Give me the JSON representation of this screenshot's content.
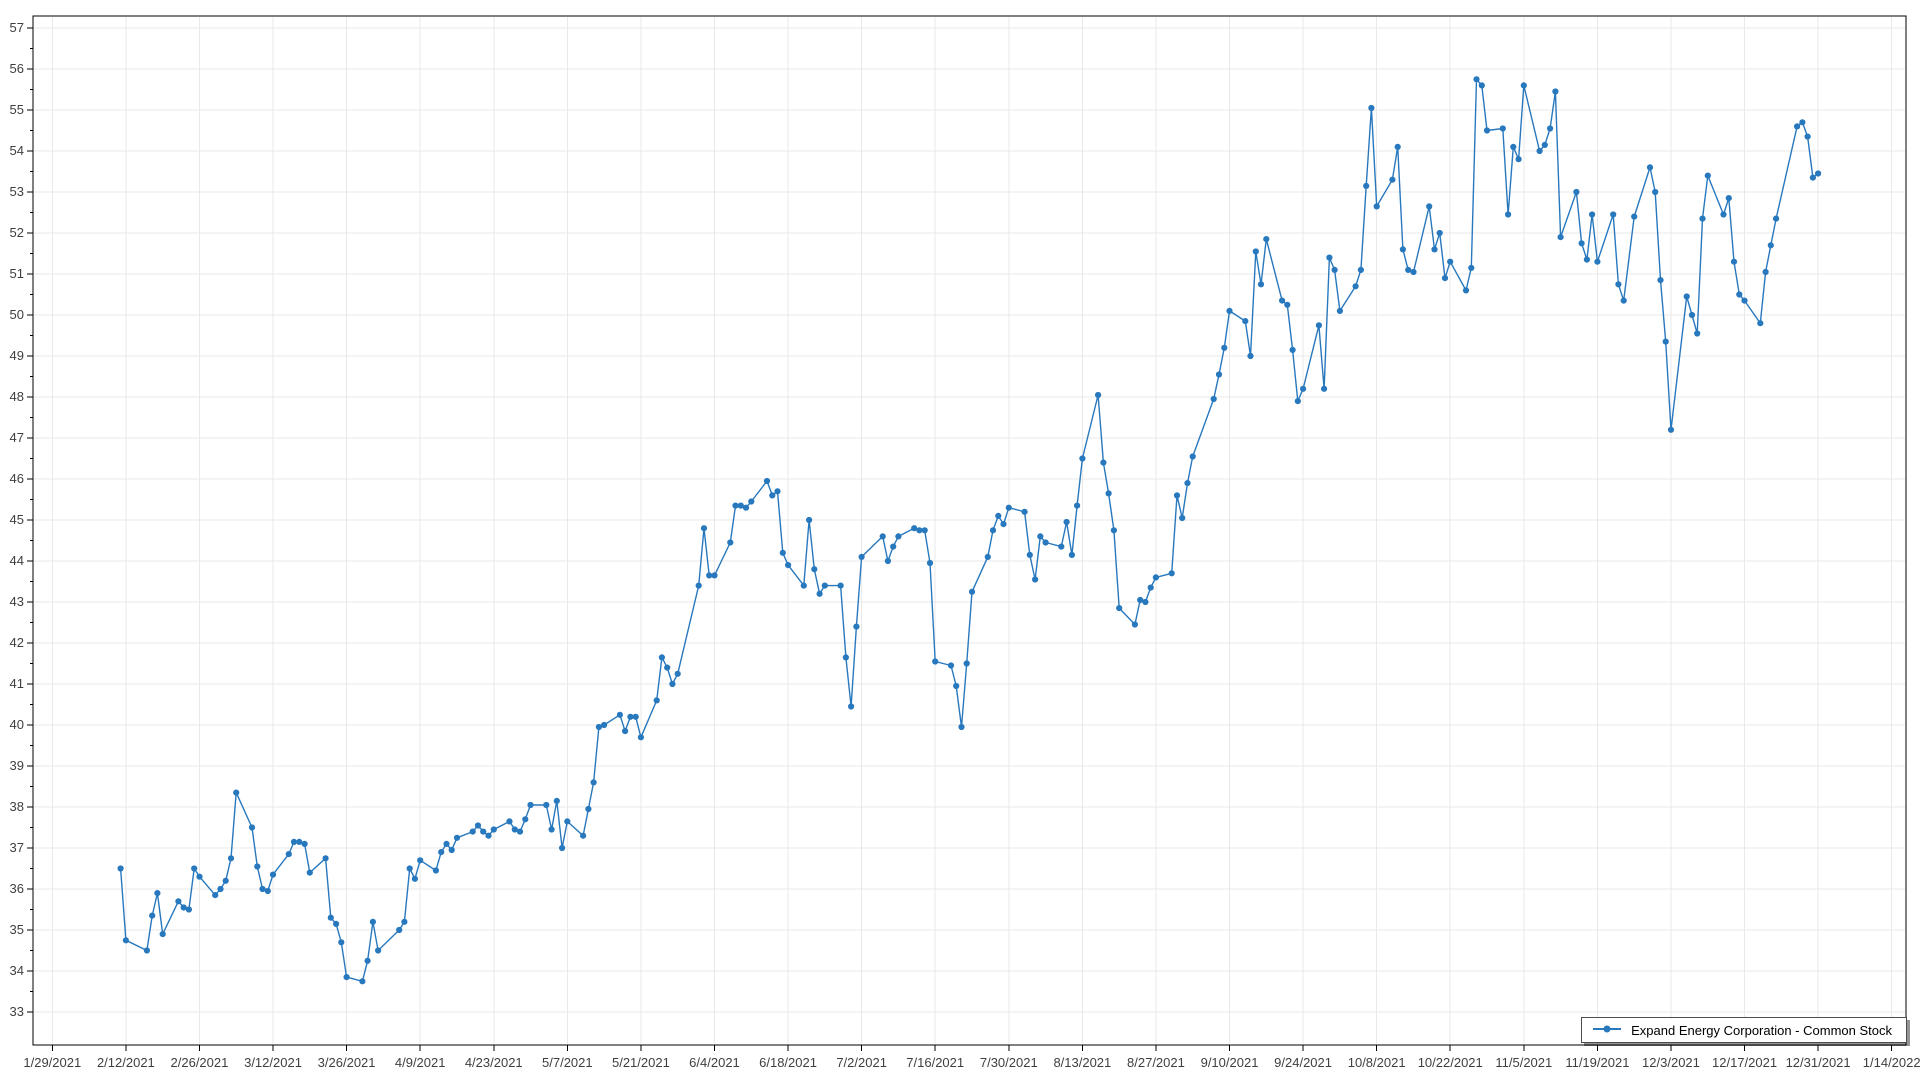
{
  "chart_data": {
    "type": "line",
    "title": "",
    "xlabel": "",
    "ylabel": "",
    "grid": true,
    "legend": {
      "position": "bottom-right",
      "label": "Expand Energy Corporation - Common Stock"
    },
    "colors": {
      "series": "#2878BE",
      "grid": "#e9e9e9",
      "axis_border": "#000000",
      "tick": "#000000",
      "label_text": "#3f3f3f",
      "background": "#ffffff"
    },
    "y_axis": {
      "min": 33,
      "max": 57,
      "tick_step": 1,
      "minor_tick_step": 0.5,
      "tick_labels": [
        "33",
        "34",
        "35",
        "36",
        "37",
        "38",
        "39",
        "40",
        "41",
        "42",
        "43",
        "44",
        "45",
        "46",
        "47",
        "48",
        "49",
        "50",
        "51",
        "52",
        "53",
        "54",
        "55",
        "56",
        "57"
      ]
    },
    "x_axis": {
      "start_date": "2021-01-29",
      "end_date": "2022-01-14",
      "tick_interval_days": 14,
      "tick_labels": [
        "1/29/2021",
        "2/12/2021",
        "2/26/2021",
        "3/12/2021",
        "3/26/2021",
        "4/9/2021",
        "4/23/2021",
        "5/7/2021",
        "5/21/2021",
        "6/4/2021",
        "6/18/2021",
        "7/2/2021",
        "7/16/2021",
        "7/30/2021",
        "8/13/2021",
        "8/27/2021",
        "9/10/2021",
        "9/24/2021",
        "10/8/2021",
        "10/22/2021",
        "11/5/2021",
        "11/19/2021",
        "12/3/2021",
        "12/17/2021",
        "12/31/2021",
        "1/14/2022"
      ]
    },
    "series": [
      {
        "name": "Expand Energy Corporation - Common Stock",
        "marker": "circle",
        "dates": [
          "2021-02-11",
          "2021-02-12",
          "2021-02-16",
          "2021-02-17",
          "2021-02-18",
          "2021-02-19",
          "2021-02-22",
          "2021-02-23",
          "2021-02-24",
          "2021-02-25",
          "2021-02-26",
          "2021-03-01",
          "2021-03-02",
          "2021-03-03",
          "2021-03-04",
          "2021-03-05",
          "2021-03-08",
          "2021-03-09",
          "2021-03-10",
          "2021-03-11",
          "2021-03-12",
          "2021-03-15",
          "2021-03-16",
          "2021-03-17",
          "2021-03-18",
          "2021-03-19",
          "2021-03-22",
          "2021-03-23",
          "2021-03-24",
          "2021-03-25",
          "2021-03-26",
          "2021-03-29",
          "2021-03-30",
          "2021-03-31",
          "2021-04-01",
          "2021-04-05",
          "2021-04-06",
          "2021-04-07",
          "2021-04-08",
          "2021-04-09",
          "2021-04-12",
          "2021-04-13",
          "2021-04-14",
          "2021-04-15",
          "2021-04-16",
          "2021-04-19",
          "2021-04-20",
          "2021-04-21",
          "2021-04-22",
          "2021-04-23",
          "2021-04-26",
          "2021-04-27",
          "2021-04-28",
          "2021-04-29",
          "2021-04-30",
          "2021-05-03",
          "2021-05-04",
          "2021-05-05",
          "2021-05-06",
          "2021-05-07",
          "2021-05-10",
          "2021-05-11",
          "2021-05-12",
          "2021-05-13",
          "2021-05-14",
          "2021-05-17",
          "2021-05-18",
          "2021-05-19",
          "2021-05-20",
          "2021-05-21",
          "2021-05-24",
          "2021-05-25",
          "2021-05-26",
          "2021-05-27",
          "2021-05-28",
          "2021-06-01",
          "2021-06-02",
          "2021-06-03",
          "2021-06-04",
          "2021-06-07",
          "2021-06-08",
          "2021-06-09",
          "2021-06-10",
          "2021-06-11",
          "2021-06-14",
          "2021-06-15",
          "2021-06-16",
          "2021-06-17",
          "2021-06-18",
          "2021-06-21",
          "2021-06-22",
          "2021-06-23",
          "2021-06-24",
          "2021-06-25",
          "2021-06-28",
          "2021-06-29",
          "2021-06-30",
          "2021-07-01",
          "2021-07-02",
          "2021-07-06",
          "2021-07-07",
          "2021-07-08",
          "2021-07-09",
          "2021-07-12",
          "2021-07-13",
          "2021-07-14",
          "2021-07-15",
          "2021-07-16",
          "2021-07-19",
          "2021-07-20",
          "2021-07-21",
          "2021-07-22",
          "2021-07-23",
          "2021-07-26",
          "2021-07-27",
          "2021-07-28",
          "2021-07-29",
          "2021-07-30",
          "2021-08-02",
          "2021-08-03",
          "2021-08-04",
          "2021-08-05",
          "2021-08-06",
          "2021-08-09",
          "2021-08-10",
          "2021-08-11",
          "2021-08-12",
          "2021-08-13",
          "2021-08-16",
          "2021-08-17",
          "2021-08-18",
          "2021-08-19",
          "2021-08-20",
          "2021-08-23",
          "2021-08-24",
          "2021-08-25",
          "2021-08-26",
          "2021-08-27",
          "2021-08-30",
          "2021-08-31",
          "2021-09-01",
          "2021-09-02",
          "2021-09-03",
          "2021-09-07",
          "2021-09-08",
          "2021-09-09",
          "2021-09-10",
          "2021-09-13",
          "2021-09-14",
          "2021-09-15",
          "2021-09-16",
          "2021-09-17",
          "2021-09-20",
          "2021-09-21",
          "2021-09-22",
          "2021-09-23",
          "2021-09-24",
          "2021-09-27",
          "2021-09-28",
          "2021-09-29",
          "2021-09-30",
          "2021-10-01",
          "2021-10-04",
          "2021-10-05",
          "2021-10-06",
          "2021-10-07",
          "2021-10-08",
          "2021-10-11",
          "2021-10-12",
          "2021-10-13",
          "2021-10-14",
          "2021-10-15",
          "2021-10-18",
          "2021-10-19",
          "2021-10-20",
          "2021-10-21",
          "2021-10-22",
          "2021-10-25",
          "2021-10-26",
          "2021-10-27",
          "2021-10-28",
          "2021-10-29",
          "2021-11-01",
          "2021-11-02",
          "2021-11-03",
          "2021-11-04",
          "2021-11-05",
          "2021-11-08",
          "2021-11-09",
          "2021-11-10",
          "2021-11-11",
          "2021-11-12",
          "2021-11-15",
          "2021-11-16",
          "2021-11-17",
          "2021-11-18",
          "2021-11-19",
          "2021-11-22",
          "2021-11-23",
          "2021-11-24",
          "2021-11-26",
          "2021-11-29",
          "2021-11-30",
          "2021-12-01",
          "2021-12-02",
          "2021-12-03",
          "2021-12-06",
          "2021-12-07",
          "2021-12-08",
          "2021-12-09",
          "2021-12-10",
          "2021-12-13",
          "2021-12-14",
          "2021-12-15",
          "2021-12-16",
          "2021-12-17",
          "2021-12-20",
          "2021-12-21",
          "2021-12-22",
          "2021-12-23",
          "2021-12-27",
          "2021-12-28",
          "2021-12-29",
          "2021-12-30",
          "2021-12-31"
        ],
        "values": [
          36.5,
          34.75,
          34.5,
          35.35,
          35.9,
          34.9,
          35.7,
          35.55,
          35.5,
          36.5,
          36.3,
          35.85,
          36.0,
          36.2,
          36.75,
          38.35,
          37.5,
          36.55,
          36.0,
          35.95,
          36.35,
          36.85,
          37.15,
          37.15,
          37.1,
          36.4,
          36.75,
          35.3,
          35.15,
          34.7,
          33.85,
          33.75,
          34.25,
          35.2,
          34.5,
          35.0,
          35.2,
          36.5,
          36.25,
          36.7,
          36.45,
          36.9,
          37.1,
          36.95,
          37.25,
          37.4,
          37.55,
          37.4,
          37.3,
          37.45,
          37.65,
          37.45,
          37.4,
          37.7,
          38.05,
          38.05,
          37.45,
          38.15,
          37.0,
          37.65,
          37.3,
          37.95,
          38.6,
          39.95,
          40.0,
          40.25,
          39.85,
          40.2,
          40.2,
          39.7,
          40.6,
          41.65,
          41.4,
          41.0,
          41.25,
          43.4,
          44.8,
          43.65,
          43.65,
          44.45,
          45.35,
          45.35,
          45.3,
          45.45,
          45.95,
          45.6,
          45.7,
          44.2,
          43.9,
          43.4,
          45.0,
          43.8,
          43.2,
          43.4,
          43.4,
          41.65,
          40.45,
          42.4,
          44.1,
          44.6,
          44.0,
          44.35,
          44.6,
          44.8,
          44.75,
          44.75,
          43.95,
          41.55,
          41.45,
          40.95,
          39.95,
          41.5,
          43.25,
          44.1,
          44.75,
          45.1,
          44.9,
          45.3,
          45.2,
          44.15,
          43.55,
          44.6,
          44.45,
          44.35,
          44.95,
          44.15,
          45.35,
          46.5,
          48.05,
          46.4,
          45.65,
          44.75,
          42.85,
          42.45,
          43.05,
          43.0,
          43.35,
          43.6,
          43.7,
          45.6,
          45.05,
          45.9,
          46.55,
          47.95,
          48.55,
          49.2,
          50.1,
          49.85,
          49.0,
          51.55,
          50.75,
          51.85,
          50.35,
          50.25,
          49.15,
          47.9,
          48.2,
          49.75,
          48.2,
          51.4,
          51.1,
          50.1,
          50.7,
          51.1,
          53.15,
          55.05,
          52.65,
          53.3,
          54.1,
          51.6,
          51.1,
          51.05,
          52.65,
          51.6,
          52.0,
          50.9,
          51.3,
          50.6,
          51.15,
          55.75,
          55.6,
          54.5,
          54.55,
          52.45,
          54.1,
          53.8,
          55.6,
          54.0,
          54.15,
          54.55,
          55.45,
          51.9,
          53.0,
          51.75,
          51.35,
          52.45,
          51.3,
          52.45,
          50.75,
          50.35,
          52.4,
          53.6,
          53.0,
          50.85,
          49.35,
          47.2,
          50.45,
          50.0,
          49.55,
          52.35,
          53.4,
          52.45,
          52.85,
          51.3,
          50.5,
          50.35,
          49.8,
          51.05,
          51.7,
          52.35,
          54.6,
          54.7,
          54.35,
          53.35,
          53.45
        ]
      }
    ]
  }
}
